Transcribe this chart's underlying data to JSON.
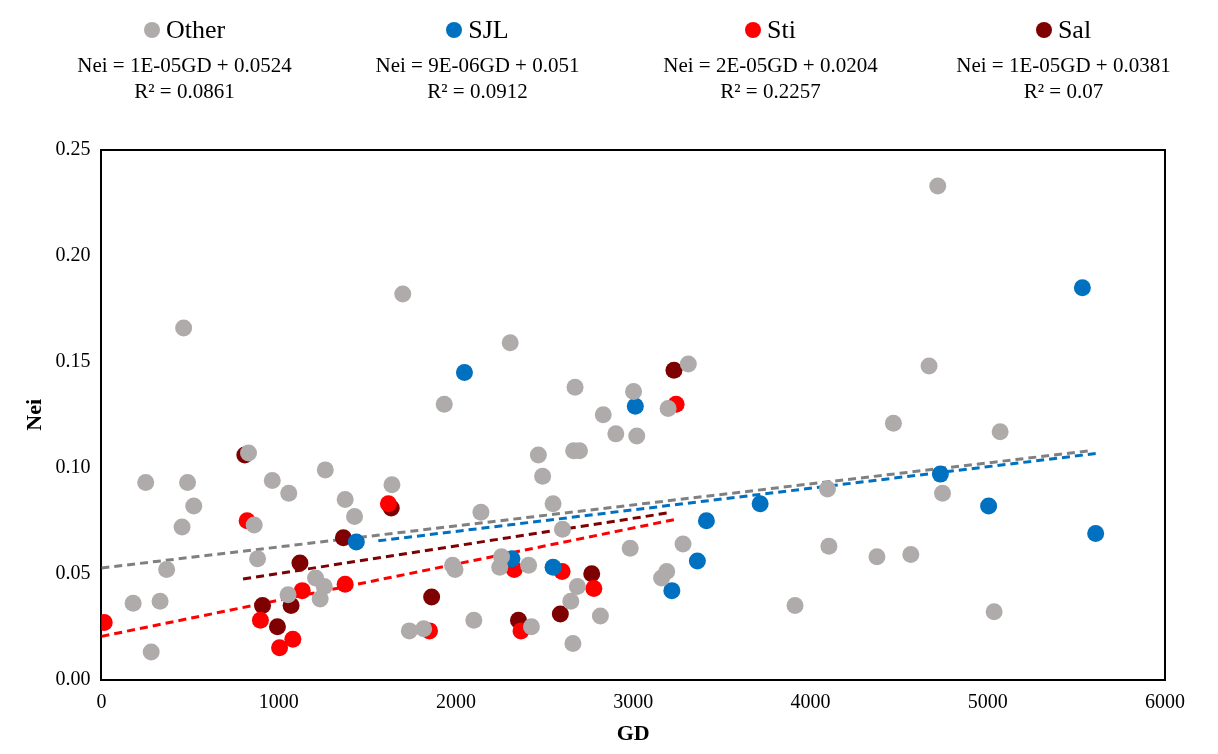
{
  "chart_data": {
    "type": "scatter",
    "xlabel": "GD",
    "ylabel": "Nei",
    "legend": "top",
    "grid": false,
    "marker": "circle",
    "xlim": [
      0,
      6000
    ],
    "xticks": [
      0,
      1000,
      2000,
      3000,
      4000,
      5000,
      6000
    ],
    "ylim": [
      0,
      0.25
    ],
    "yticks": [
      {
        "value": 0,
        "label": "0.00"
      },
      {
        "value": 0.05,
        "label": "0.05"
      },
      {
        "value": 0.1,
        "label": "0.10"
      },
      {
        "value": 0.15,
        "label": "0.15"
      },
      {
        "value": 0.2,
        "label": "0.20"
      },
      {
        "value": 0.25,
        "label": "0.25"
      }
    ],
    "annotations": [
      "Nei = 1E-05GD + 0.0524\nR² = 0.0861",
      "Nei = 9E-06GD + 0.051\nR² = 0.0912",
      "Nei = 2E-05GD + 0.0204\nR² = 0.2257",
      "Nei = 1E-05GD + 0.0381\nR² = 0.07"
    ],
    "series": [
      {
        "name": "Other",
        "color": "#afabab",
        "x": [
          464,
          1700,
          2306,
          1934,
          2672,
          3002,
          2831,
          2902,
          3020,
          2664,
          2697,
          2465,
          2489,
          2548,
          2141,
          2601,
          2983,
          250,
          486,
          521,
          455,
          830,
          862,
          964,
          1057,
          1263,
          1375,
          1428,
          1639,
          881,
          368,
          179,
          331,
          281,
          1208,
          1257,
          1053,
          1234,
          1737,
          1818,
          2101,
          1981,
          1995,
          2257,
          2247,
          2410,
          2426,
          2660,
          2648,
          2685,
          2815,
          3160,
          4718,
          4669,
          4468,
          5070,
          3311,
          3197,
          4096,
          4745,
          3281,
          3189,
          4104,
          4375,
          4566,
          3913,
          5036
        ],
        "values": [
          0.166,
          0.182,
          0.159,
          0.13,
          0.138,
          0.136,
          0.125,
          0.116,
          0.115,
          0.108,
          0.108,
          0.106,
          0.096,
          0.083,
          0.079,
          0.071,
          0.062,
          0.093,
          0.093,
          0.082,
          0.072,
          0.107,
          0.073,
          0.094,
          0.088,
          0.099,
          0.085,
          0.077,
          0.092,
          0.057,
          0.052,
          0.036,
          0.037,
          0.013,
          0.048,
          0.044,
          0.04,
          0.038,
          0.023,
          0.024,
          0.028,
          0.054,
          0.052,
          0.058,
          0.053,
          0.054,
          0.025,
          0.017,
          0.037,
          0.044,
          0.03,
          0.048,
          0.233,
          0.148,
          0.121,
          0.117,
          0.149,
          0.128,
          0.09,
          0.088,
          0.064,
          0.051,
          0.063,
          0.058,
          0.059,
          0.035,
          0.032
        ]
      },
      {
        "name": "SJL",
        "color": "#0070c0",
        "x": [
          2048,
          3012,
          1438,
          2316,
          2548,
          5534,
          4733,
          3716,
          3413,
          5005,
          5609,
          3362,
          3218
        ],
        "values": [
          0.145,
          0.129,
          0.065,
          0.057,
          0.053,
          0.185,
          0.097,
          0.083,
          0.075,
          0.082,
          0.069,
          0.056,
          0.042
        ]
      },
      {
        "name": "Sti",
        "color": "#ff0000",
        "x": [
          16,
          822,
          1619,
          897,
          1133,
          1375,
          1080,
          1005,
          1851,
          2329,
          2367,
          2599,
          2778,
          3242
        ],
        "values": [
          0.027,
          0.075,
          0.083,
          0.028,
          0.042,
          0.045,
          0.019,
          0.015,
          0.023,
          0.052,
          0.023,
          0.051,
          0.043,
          0.13
        ]
      },
      {
        "name": "Sal",
        "color": "#7f0000",
        "x": [
          809,
          1365,
          1635,
          1120,
          909,
          1070,
          993,
          1863,
          2353,
          2589,
          2766,
          3230
        ],
        "values": [
          0.106,
          0.067,
          0.081,
          0.055,
          0.035,
          0.035,
          0.025,
          0.039,
          0.028,
          0.031,
          0.05,
          0.146
        ]
      },
      {
        "type": "line",
        "color": "#808080",
        "line_style": "dashed",
        "marker": "none",
        "x": [
          0,
          5564
        ],
        "values": [
          0.0527,
          0.1079
        ]
      },
      {
        "type": "line",
        "color": "#0070c0",
        "line_style": "dashed",
        "marker": "none",
        "x": [
          1562,
          5609
        ],
        "values": [
          0.0655,
          0.1067
        ]
      },
      {
        "type": "line",
        "color": "#ff0000",
        "line_style": "dashed",
        "marker": "none",
        "x": [
          0,
          3230
        ],
        "values": [
          0.0204,
          0.0755
        ]
      },
      {
        "type": "line",
        "color": "#7f0000",
        "line_style": "dashed",
        "marker": "none",
        "x": [
          799,
          3189
        ],
        "values": [
          0.0475,
          0.0786
        ]
      }
    ]
  }
}
